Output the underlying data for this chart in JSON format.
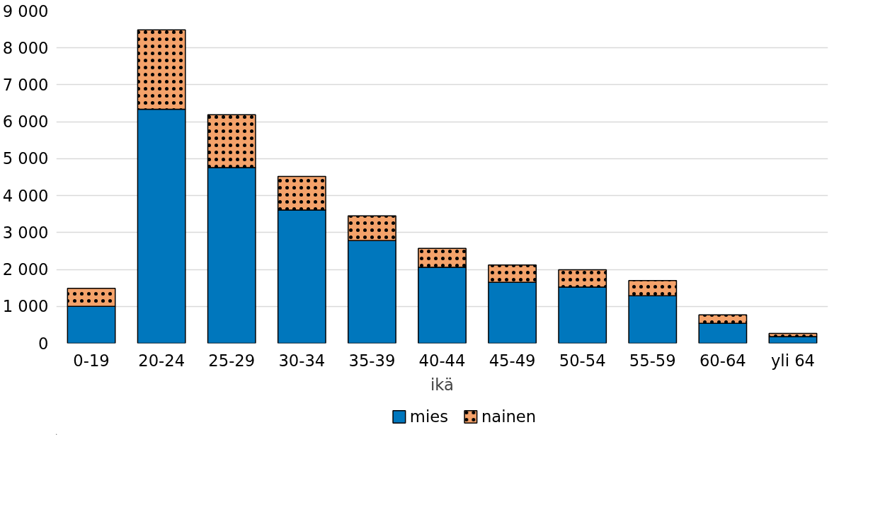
{
  "chart_data": {
    "type": "bar",
    "stacked": true,
    "xlabel": "ikä",
    "categories": [
      "0-19",
      "20-24",
      "25-29",
      "30-34",
      "35-39",
      "40-44",
      "45-49",
      "50-54",
      "55-59",
      "60-64",
      "yli 64"
    ],
    "series": [
      {
        "name": "mies",
        "color": "#0077bd",
        "values": [
          1000,
          6340,
          4760,
          3610,
          2780,
          2060,
          1650,
          1520,
          1290,
          540,
          180
        ]
      },
      {
        "name": "nainen",
        "color": "#f4a26a",
        "values": [
          490,
          2150,
          1430,
          910,
          670,
          510,
          470,
          470,
          410,
          230,
          90
        ]
      }
    ],
    "ylim": [
      0,
      9000
    ],
    "yticks": [
      {
        "value": 0,
        "label": "0"
      },
      {
        "value": 1000,
        "label": "1 000"
      },
      {
        "value": 2000,
        "label": "2 000"
      },
      {
        "value": 3000,
        "label": "3 000"
      },
      {
        "value": 4000,
        "label": "4 000"
      },
      {
        "value": 5000,
        "label": "5 000"
      },
      {
        "value": 6000,
        "label": "6 000"
      },
      {
        "value": 7000,
        "label": "7 000"
      },
      {
        "value": 8000,
        "label": "8 000"
      },
      {
        "value": 9000,
        "label": "9 000"
      }
    ],
    "grid": "y",
    "legend": "bottom"
  }
}
